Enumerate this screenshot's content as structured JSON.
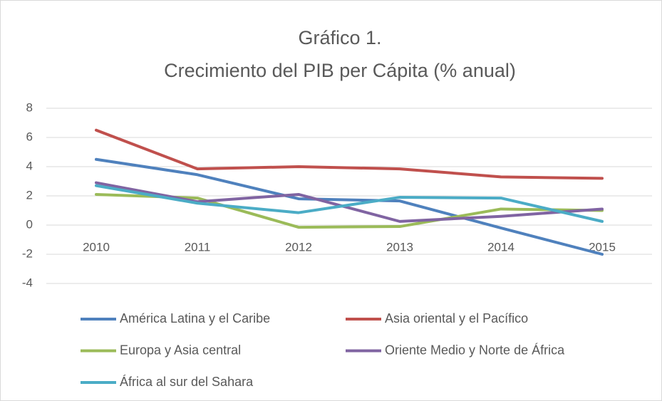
{
  "chart_data": {
    "type": "line",
    "title": [
      "Gráfico 1.",
      "Crecimiento del PIB per Cápita (% anual)"
    ],
    "categories": [
      "2010",
      "2011",
      "2012",
      "2013",
      "2014",
      "2015"
    ],
    "series": [
      {
        "name": "América Latina y el Caribe",
        "color": "#4f81bd",
        "values": [
          4.5,
          3.45,
          1.8,
          1.65,
          -0.2,
          -2.0
        ]
      },
      {
        "name": "Asia oriental y el Pacífico",
        "color": "#c0504d",
        "values": [
          6.5,
          3.85,
          4.0,
          3.85,
          3.3,
          3.2
        ]
      },
      {
        "name": "Europa y Asia central",
        "color": "#9bbb59",
        "values": [
          2.1,
          1.85,
          -0.15,
          -0.1,
          1.1,
          1.0
        ]
      },
      {
        "name": "Oriente Medio y Norte de África",
        "color": "#8064a2",
        "values": [
          2.9,
          1.6,
          2.1,
          0.25,
          0.6,
          1.1
        ]
      },
      {
        "name": "África al sur del Sahara",
        "color": "#4bacc6",
        "values": [
          2.7,
          1.5,
          0.85,
          1.9,
          1.85,
          0.25
        ]
      }
    ],
    "ylim": [
      -4,
      8
    ],
    "yticks": [
      -4,
      -2,
      0,
      2,
      4,
      6,
      8
    ],
    "grid": true,
    "legend": "bottom"
  }
}
